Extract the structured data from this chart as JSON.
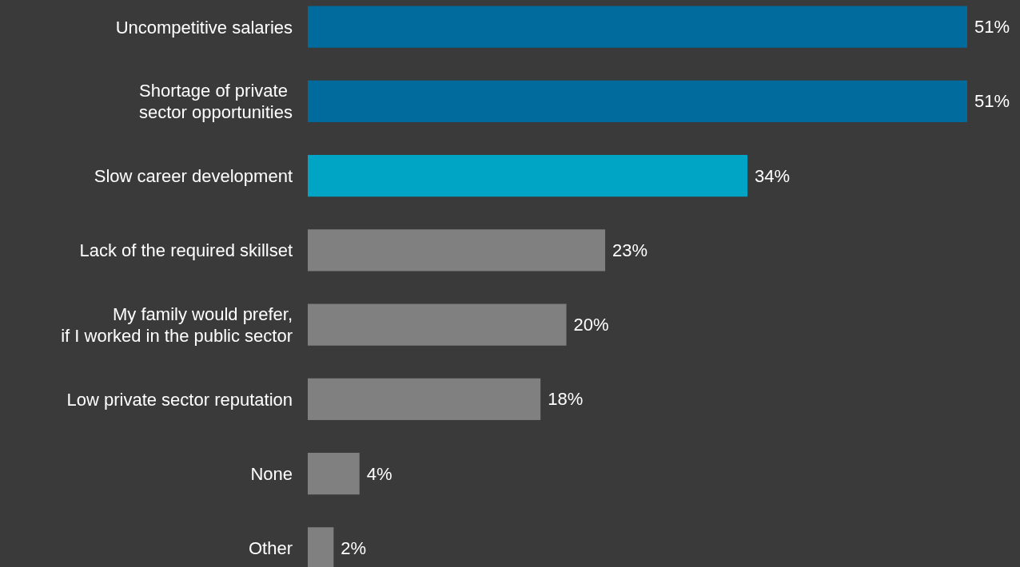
{
  "chart_data": {
    "type": "bar",
    "orientation": "horizontal",
    "categories": [
      "Uncompetitive salaries",
      "Shortage of private \nsector opportunities",
      "Slow career development",
      "Lack of the required skillset",
      "My family would prefer,\nif I worked in the public sector",
      "Low private sector reputation",
      "None",
      "Other"
    ],
    "values": [
      51,
      51,
      34,
      23,
      20,
      18,
      4,
      2
    ],
    "colors": [
      "#006b9c",
      "#006b9c",
      "#00a5c6",
      "#808080",
      "#808080",
      "#808080",
      "#808080",
      "#808080"
    ],
    "value_labels": [
      "51%",
      "51%",
      "34%",
      "23%",
      "20%",
      "18%",
      "4%",
      "2%"
    ]
  }
}
